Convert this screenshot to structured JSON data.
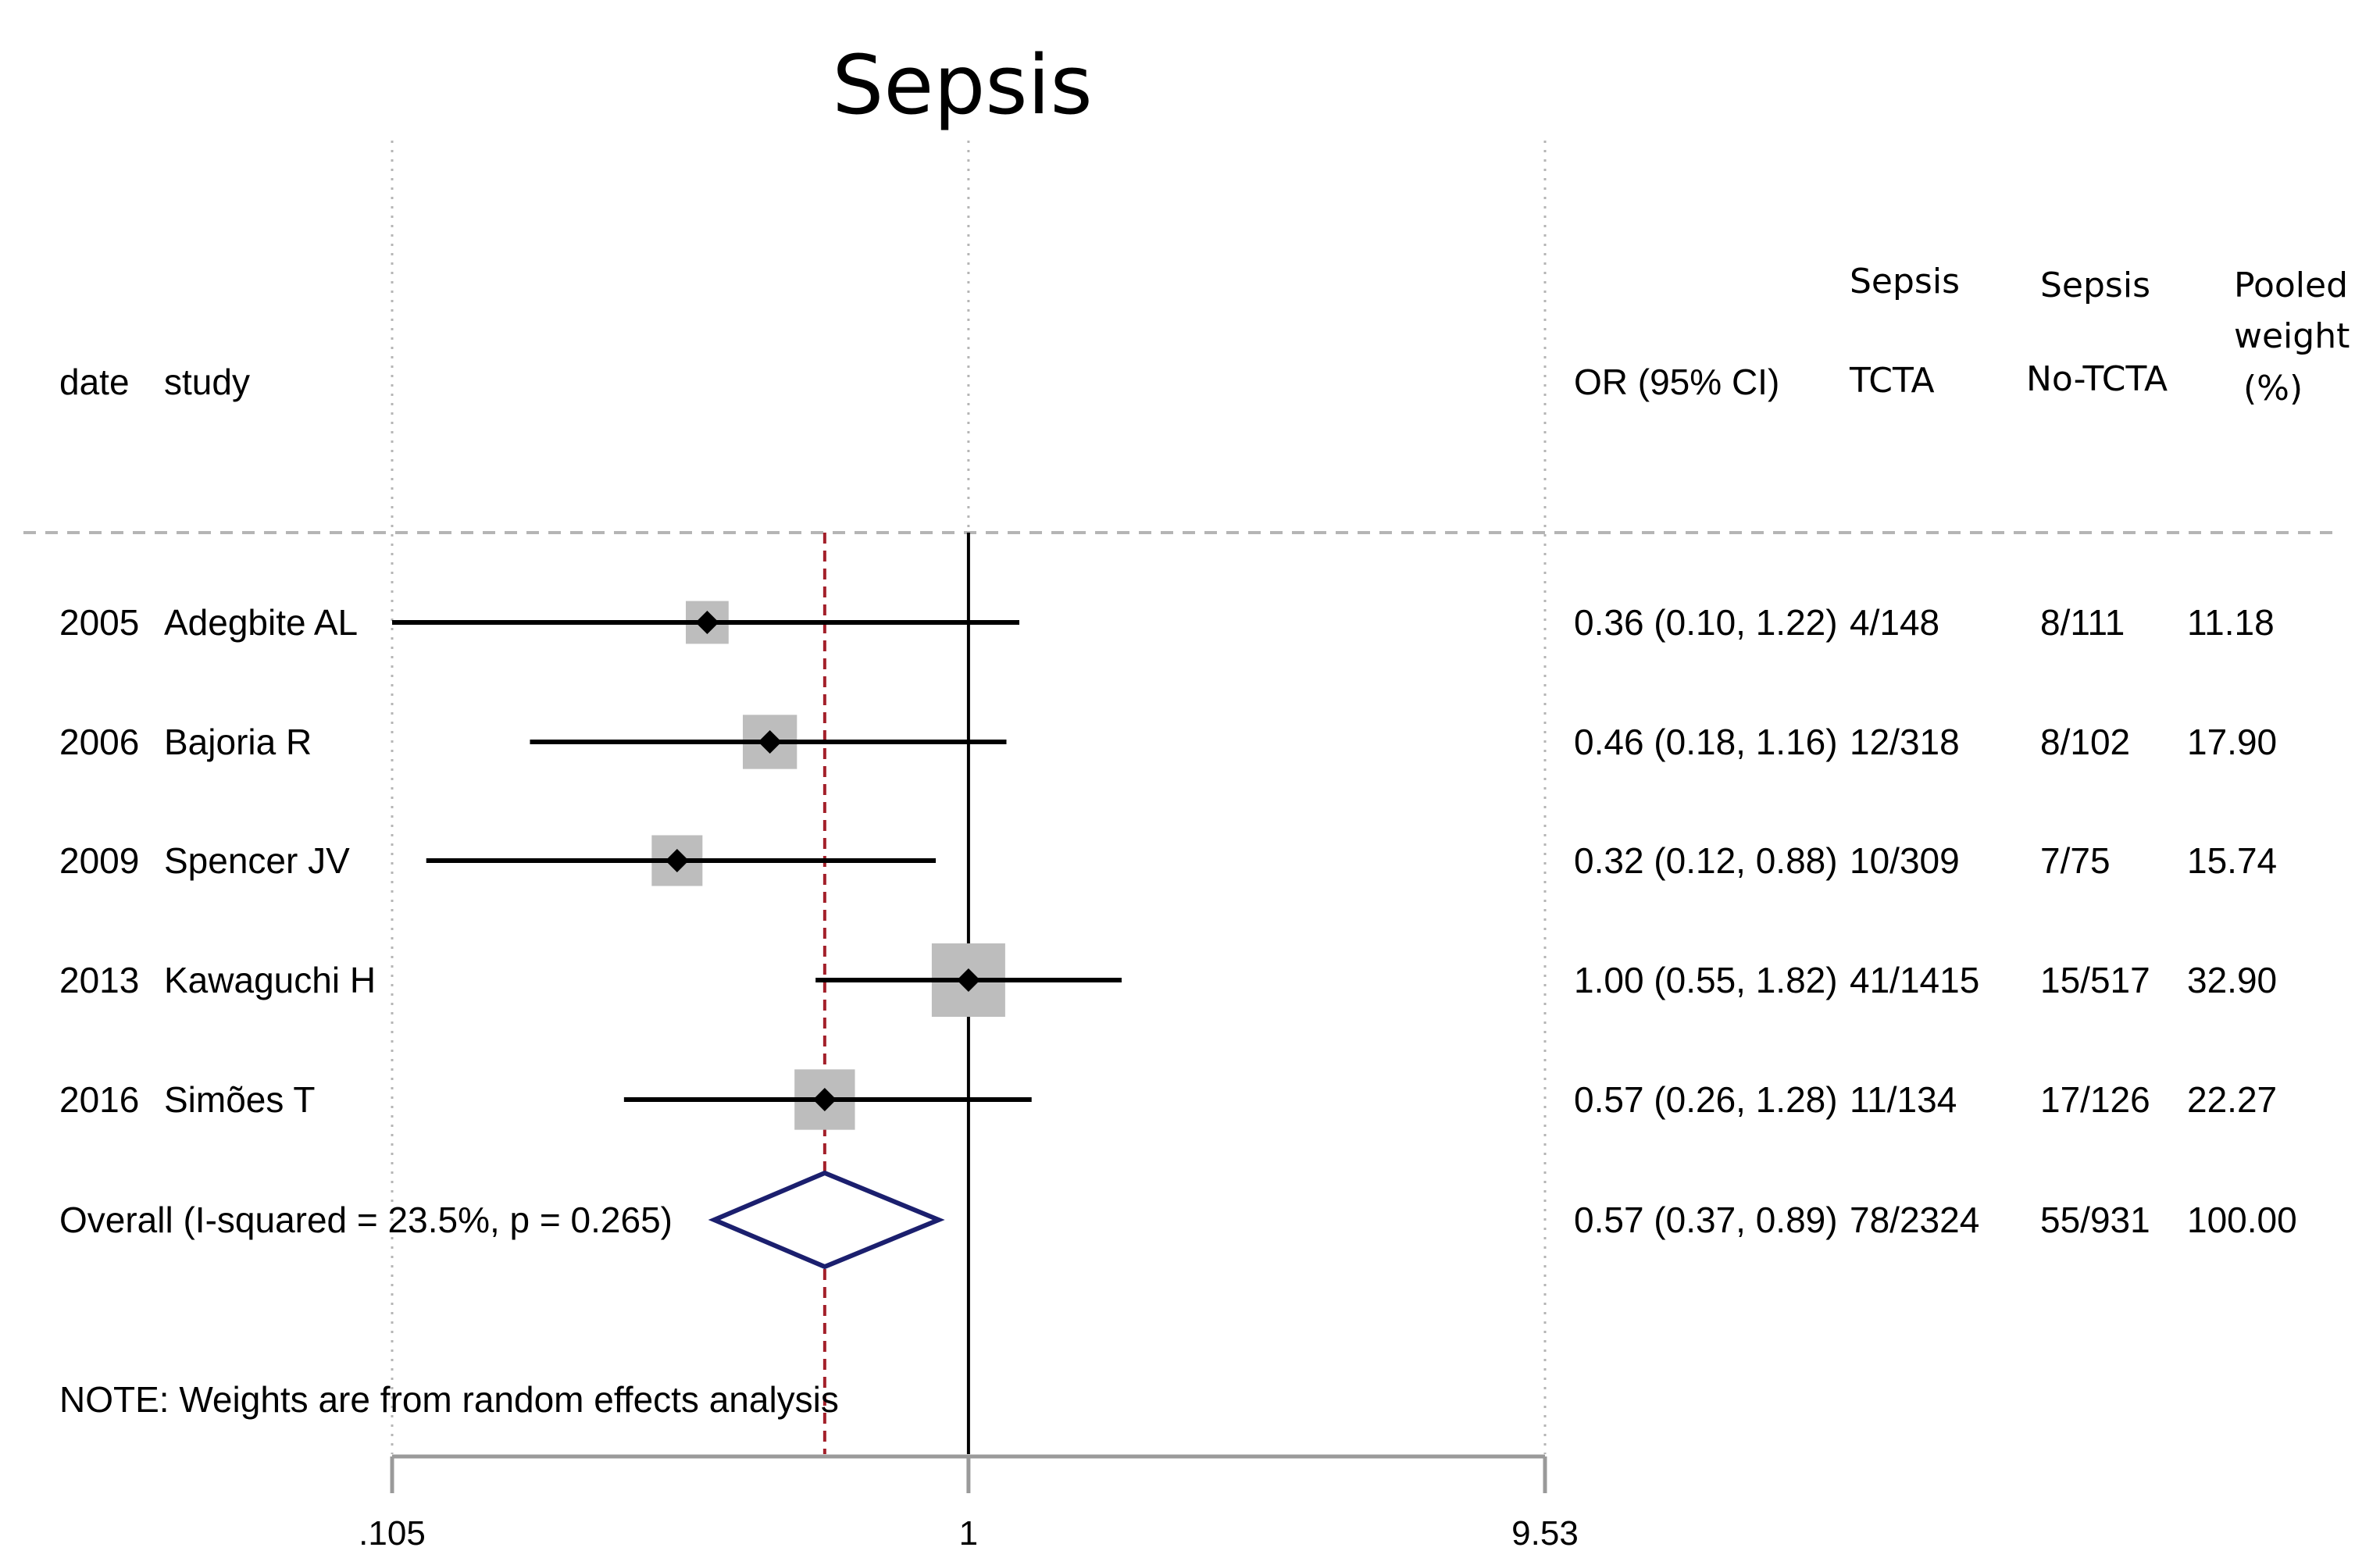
{
  "chart_data": {
    "type": "forest",
    "title": "Sepsis",
    "xscale": "log",
    "xlim": [
      0.105,
      9.53
    ],
    "ticks": [
      ".105",
      "1",
      "9.53"
    ],
    "tick_values": [
      0.105,
      1,
      9.53
    ],
    "null_line": 1,
    "pooled_line": 0.57,
    "headers": {
      "date": "date",
      "study": "study",
      "or": "OR (95% CI)",
      "tcta_top": "Sepsis",
      "tcta_bottom": "TCTA",
      "notcta_top": "Sepsis",
      "notcta_bottom": "No-TCTA",
      "weight_top": "Pooled",
      "weight_mid": "weight",
      "weight_bottom": "(%)"
    },
    "studies": [
      {
        "date": "2005",
        "study": "Adegbite AL",
        "or": 0.36,
        "lo": 0.1,
        "hi": 1.22,
        "or_text": "0.36 (0.10, 1.22)",
        "tcta": "4/148",
        "notcta": "8/111",
        "weight": "11.18",
        "weight_value": 11.18
      },
      {
        "date": "2006",
        "study": "Bajoria R",
        "or": 0.46,
        "lo": 0.18,
        "hi": 1.16,
        "or_text": "0.46 (0.18, 1.16)",
        "tcta": "12/318",
        "notcta": "8/102",
        "weight": "17.90",
        "weight_value": 17.9
      },
      {
        "date": "2009",
        "study": "Spencer JV",
        "or": 0.32,
        "lo": 0.12,
        "hi": 0.88,
        "or_text": "0.32 (0.12, 0.88)",
        "tcta": "10/309",
        "notcta": "7/75",
        "weight": "15.74",
        "weight_value": 15.74
      },
      {
        "date": "2013",
        "study": "Kawaguchi H",
        "or": 1.0,
        "lo": 0.55,
        "hi": 1.82,
        "or_text": "1.00 (0.55, 1.82)",
        "tcta": "41/1415",
        "notcta": "15/517",
        "weight": "32.90",
        "weight_value": 32.9
      },
      {
        "date": "2016",
        "study": "Simões T",
        "or": 0.57,
        "lo": 0.26,
        "hi": 1.28,
        "or_text": "0.57 (0.26, 1.28)",
        "tcta": "11/134",
        "notcta": "17/126",
        "weight": "22.27",
        "weight_value": 22.27
      }
    ],
    "overall": {
      "label": "Overall  (I-squared = 23.5%, p = 0.265)",
      "or": 0.57,
      "lo": 0.37,
      "hi": 0.89,
      "or_text": "0.57 (0.37, 0.89)",
      "tcta": "78/2324",
      "notcta": "55/931",
      "weight": "100.00"
    },
    "note": "NOTE: Weights are from random effects analysis"
  },
  "colors": {
    "ci_line": "#000000",
    "weight_box": "#bdbdbd",
    "point": "#000000",
    "diamond": "#1b1f6e",
    "pooled_line": "#a3202a",
    "grid": "#b5b5b5",
    "axis": "#9a9a9a"
  }
}
